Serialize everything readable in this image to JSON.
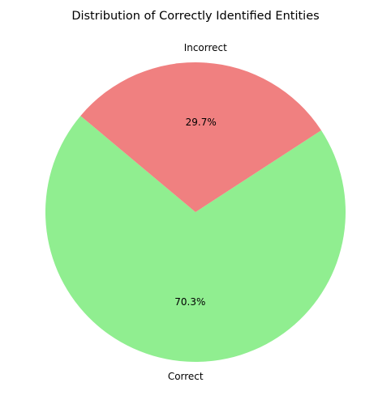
{
  "chart_data": {
    "type": "pie",
    "title": "Distribution of Correctly Identified Entities",
    "slices": [
      {
        "label": "Correct",
        "value": 70.3,
        "pct_label": "70.3%",
        "color": "#90ee90"
      },
      {
        "label": "Incorrect",
        "value": 29.7,
        "pct_label": "29.7%",
        "color": "#f08080"
      }
    ],
    "start_angle_deg": 140,
    "direction": "counterclockwise"
  }
}
